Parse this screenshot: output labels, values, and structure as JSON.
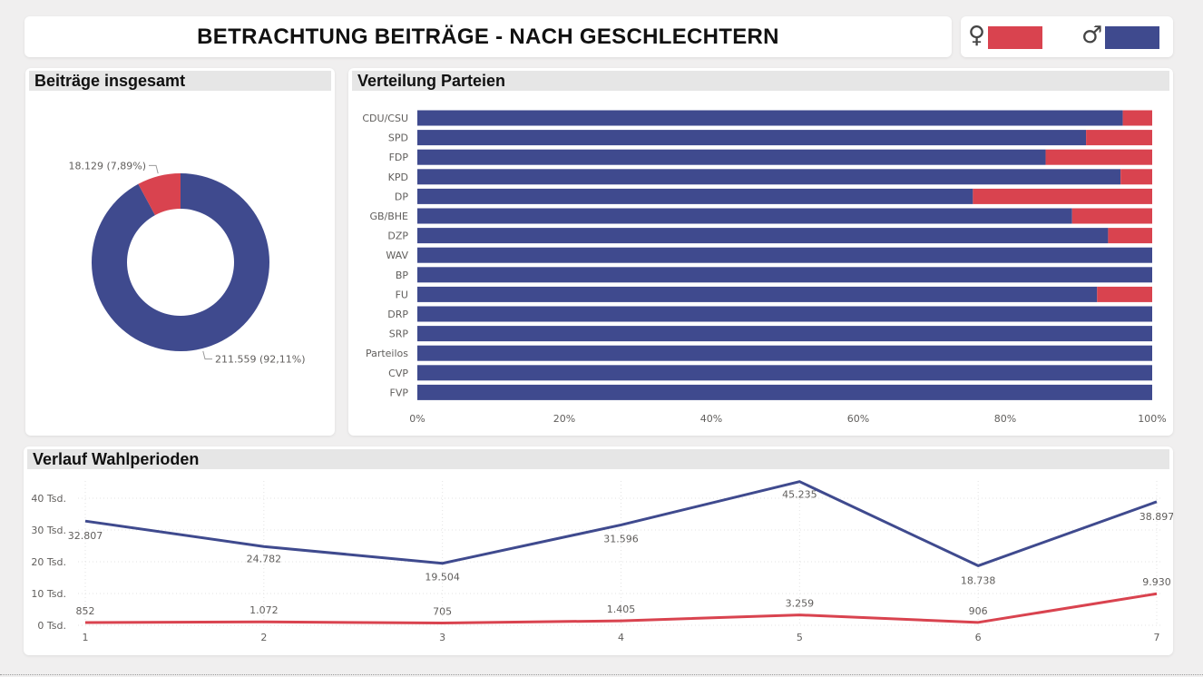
{
  "title": "BETRACHTUNG BEITRÄGE - NACH GESCHLECHTERN",
  "legend": {
    "female_symbol": "♀",
    "male_symbol": "♂",
    "female_color": "#d9434f",
    "male_color": "#3f4a8e"
  },
  "panels": {
    "donut_title": "Beiträge insgesamt",
    "bar_title": "Verteilung Parteien",
    "line_title": "Verlauf Wahlperioden"
  },
  "chart_data": [
    {
      "type": "pie",
      "title": "Beiträge insgesamt",
      "slices": [
        {
          "name": "♂",
          "value": 211559,
          "label": "211.559 (92,11%)",
          "color": "#3f4a8e"
        },
        {
          "name": "♀",
          "value": 18129,
          "label": "18.129 (7,89%)",
          "color": "#d9434f"
        }
      ]
    },
    {
      "type": "bar",
      "title": "Verteilung Parteien",
      "orientation": "horizontal",
      "stacked": "percent",
      "categories": [
        "CDU/CSU",
        "SPD",
        "FDP",
        "KPD",
        "DP",
        "GB/BHE",
        "DZP",
        "WAV",
        "BP",
        "FU",
        "DRP",
        "SRP",
        "Parteilos",
        "CVP",
        "FVP"
      ],
      "series": [
        {
          "name": "♂",
          "color": "#3f4a8e",
          "values": [
            96,
            91,
            85.5,
            95.7,
            75.6,
            89.1,
            94,
            100,
            100,
            92.5,
            100,
            100,
            100,
            100,
            100
          ]
        },
        {
          "name": "♀",
          "color": "#d9434f",
          "values": [
            4,
            9,
            14.5,
            4.3,
            24.4,
            10.9,
            6,
            0,
            0,
            7.5,
            0,
            0,
            0,
            0,
            0
          ]
        }
      ],
      "xticks": [
        "0%",
        "20%",
        "40%",
        "60%",
        "80%",
        "100%"
      ],
      "xlim": [
        0,
        100
      ]
    },
    {
      "type": "line",
      "title": "Verlauf Wahlperioden",
      "x": [
        1,
        2,
        3,
        4,
        5,
        6,
        7
      ],
      "series": [
        {
          "name": "♂",
          "color": "#3f4a8e",
          "values": [
            32807,
            24782,
            19504,
            31596,
            45235,
            18738,
            38897
          ],
          "labels": [
            "32.807",
            "24.782",
            "19.504",
            "31.596",
            "45.235",
            "18.738",
            "38.897"
          ]
        },
        {
          "name": "♀",
          "color": "#d9434f",
          "values": [
            852,
            1072,
            705,
            1405,
            3259,
            906,
            9930
          ],
          "labels": [
            "852",
            "1.072",
            "705",
            "1.405",
            "3.259",
            "906",
            "9.930"
          ]
        }
      ],
      "yticks": [
        "0 Tsd.",
        "10 Tsd.",
        "20 Tsd.",
        "30 Tsd.",
        "40 Tsd."
      ],
      "ylim": [
        0,
        46000
      ],
      "grid": true
    }
  ]
}
